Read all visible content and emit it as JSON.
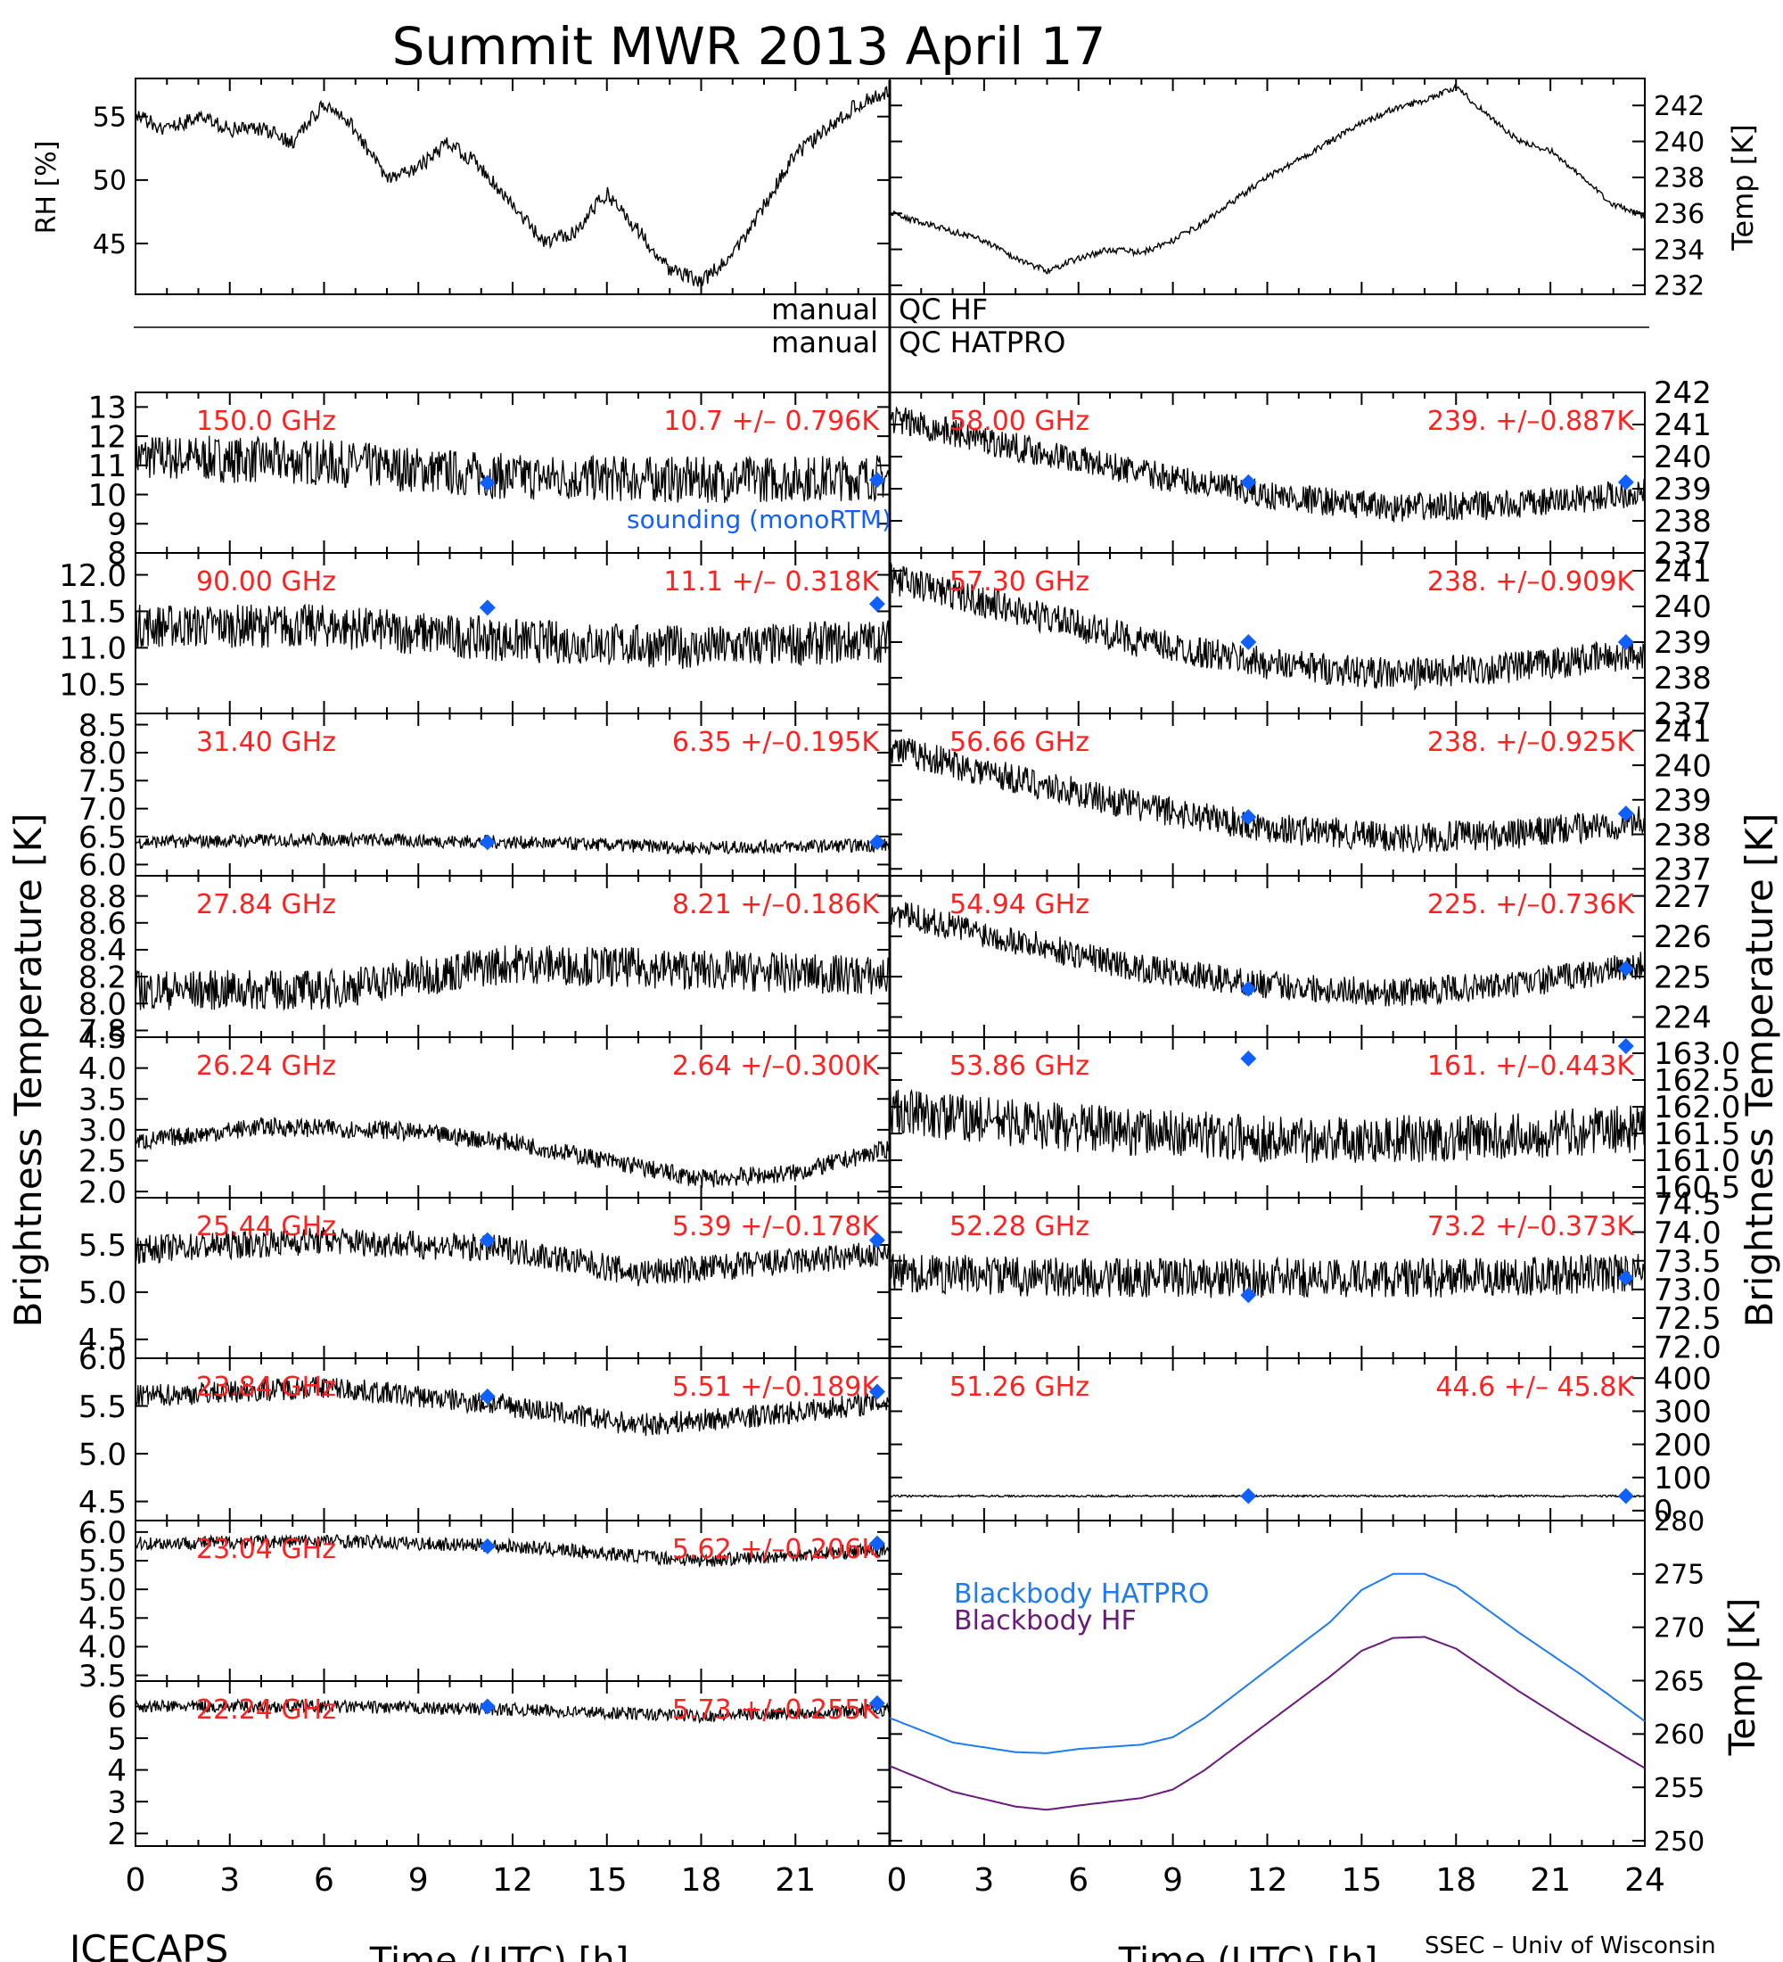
{
  "page": {
    "title": "Summit MWR 2013 April 17",
    "footer_left": "ICECAPS",
    "footer_right": "SSEC – Univ of Wisconsin",
    "qc_row1_left": "manual",
    "qc_row1_right": "QC HF",
    "qc_row2_left": "manual",
    "qc_row2_right": "QC HATPRO",
    "left_axis_title": "Brightness Temperature [K]",
    "right_axis_title": "Brightness Temperature [K]",
    "xlabel_left": "Time (UTC) [h]",
    "xlabel_right": "Time (UTC) [h]",
    "sounding_label": "sounding (monoRTM)",
    "colors": {
      "label_red": "#ff2020",
      "sounding_blue": "#1060ff",
      "bb_hatpro": "#1e7cf0",
      "bb_hf": "#6a1a7a",
      "ink": "#000000"
    }
  },
  "chart_data": [
    {
      "id": "rh",
      "type": "line",
      "ylabel": "RH [%]",
      "xlim": [
        0,
        24
      ],
      "ylim": [
        41,
        58
      ],
      "yticks": [
        45,
        50,
        55
      ],
      "xticks": [
        0,
        3,
        6,
        9,
        12,
        15,
        18,
        21
      ],
      "x": [
        0,
        1,
        2,
        3,
        4,
        5,
        6,
        7,
        8,
        9,
        10,
        11,
        12,
        13,
        14,
        15,
        16,
        17,
        18,
        19,
        20,
        21,
        22,
        23,
        24
      ],
      "y": [
        55,
        54,
        55,
        54,
        54,
        53,
        56,
        54,
        50,
        51,
        53,
        51,
        48,
        45,
        46,
        49,
        46,
        43,
        42,
        44,
        48,
        52,
        54,
        56,
        57
      ]
    },
    {
      "id": "temp",
      "type": "line",
      "ylabel": "Temp [K]",
      "xlim": [
        0,
        24
      ],
      "ylim": [
        231.5,
        243.5
      ],
      "yticks": [
        232,
        234,
        236,
        238,
        240,
        242
      ],
      "xticks": [
        0,
        3,
        6,
        9,
        12,
        15,
        18,
        21
      ],
      "x": [
        0,
        1,
        2,
        3,
        4,
        5,
        6,
        7,
        8,
        9,
        10,
        11,
        12,
        13,
        14,
        15,
        16,
        17,
        18,
        19,
        20,
        21,
        22,
        23,
        24
      ],
      "y": [
        236,
        235.5,
        235,
        234.5,
        233.5,
        232.8,
        233.5,
        234,
        233.8,
        234.5,
        235.5,
        236.8,
        238,
        239,
        240,
        241,
        241.8,
        242.3,
        243,
        241.5,
        240,
        239.5,
        238,
        236.5,
        235.8
      ]
    },
    {
      "id": "l150",
      "type": "scatter",
      "freq": "150.0 GHz",
      "stat": "10.7 +/– 0.796K",
      "ylim": [
        8,
        13.5
      ],
      "yticks": [
        8,
        9,
        10,
        11,
        12,
        13
      ],
      "xlim": [
        0,
        24
      ],
      "trend_x": [
        0,
        6,
        12,
        18,
        24
      ],
      "trend_y": [
        11.3,
        11.1,
        10.6,
        10.5,
        10.6
      ],
      "noise": 0.8,
      "sounding_x": [
        11.2,
        23.6
      ],
      "sounding_y": [
        10.4,
        10.5
      ]
    },
    {
      "id": "l90",
      "type": "scatter",
      "freq": "90.00 GHz",
      "stat": "11.1 +/– 0.318K",
      "ylim": [
        10.1,
        12.3
      ],
      "yticks": [
        10.5,
        11.0,
        11.5,
        12.0
      ],
      "xlim": [
        0,
        24
      ],
      "trend_x": [
        0,
        6,
        12,
        18,
        24
      ],
      "trend_y": [
        11.3,
        11.3,
        11.1,
        11.0,
        11.1
      ],
      "noise": 0.3,
      "sounding_x": [
        11.2,
        23.6
      ],
      "sounding_y": [
        11.55,
        11.6
      ]
    },
    {
      "id": "l31",
      "type": "scatter",
      "freq": "31.40 GHz",
      "stat": "6.35 +/–0.195K",
      "ylim": [
        5.8,
        8.7
      ],
      "yticks": [
        6.0,
        6.5,
        7.0,
        7.5,
        8.0,
        8.5
      ],
      "xlim": [
        0,
        24
      ],
      "trend_x": [
        0,
        6,
        12,
        18,
        24
      ],
      "trend_y": [
        6.4,
        6.45,
        6.4,
        6.3,
        6.35
      ],
      "noise": 0.12,
      "sounding_x": [
        11.2,
        23.6
      ],
      "sounding_y": [
        6.4,
        6.4
      ]
    },
    {
      "id": "l27",
      "type": "scatter",
      "freq": "27.84 GHz",
      "stat": "8.21 +/–0.186K",
      "ylim": [
        7.75,
        8.95
      ],
      "yticks": [
        7.8,
        8.0,
        8.2,
        8.4,
        8.6,
        8.8
      ],
      "xlim": [
        0,
        24
      ],
      "trend_x": [
        0,
        6,
        12,
        18,
        24
      ],
      "trend_y": [
        8.1,
        8.1,
        8.3,
        8.25,
        8.2
      ],
      "noise": 0.15,
      "sounding_x": [],
      "sounding_y": []
    },
    {
      "id": "l26",
      "type": "scatter",
      "freq": "26.24 GHz",
      "stat": "2.64 +/–0.300K",
      "ylim": [
        1.9,
        4.5
      ],
      "yticks": [
        2.0,
        2.5,
        3.0,
        3.5,
        4.0,
        4.5
      ],
      "xlim": [
        0,
        24
      ],
      "trend_x": [
        0,
        4,
        8,
        12,
        16,
        18,
        21,
        24
      ],
      "trend_y": [
        2.8,
        3.05,
        3.0,
        2.8,
        2.4,
        2.2,
        2.3,
        2.7
      ],
      "noise": 0.15,
      "sounding_x": [],
      "sounding_y": []
    },
    {
      "id": "l25",
      "type": "scatter",
      "freq": "25.44 GHz",
      "stat": "5.39 +/–0.178K",
      "ylim": [
        4.3,
        6.0
      ],
      "yticks": [
        4.5,
        5.0,
        5.5
      ],
      "xlim": [
        0,
        24
      ],
      "trend_x": [
        0,
        6,
        12,
        16,
        20,
        24
      ],
      "trend_y": [
        5.45,
        5.55,
        5.45,
        5.2,
        5.3,
        5.4
      ],
      "noise": 0.15,
      "sounding_x": [
        11.2,
        23.6
      ],
      "sounding_y": [
        5.55,
        5.55
      ]
    },
    {
      "id": "l23",
      "type": "scatter",
      "freq": "23.84 GHz",
      "stat": "5.51 +/–0.189K",
      "ylim": [
        4.3,
        6.0
      ],
      "yticks": [
        4.5,
        5.0,
        5.5,
        6.0
      ],
      "xlim": [
        0,
        24
      ],
      "trend_x": [
        0,
        6,
        12,
        16,
        20,
        24
      ],
      "trend_y": [
        5.6,
        5.7,
        5.5,
        5.3,
        5.4,
        5.55
      ],
      "noise": 0.12,
      "sounding_x": [
        11.2,
        23.6
      ],
      "sounding_y": [
        5.6,
        5.65
      ]
    },
    {
      "id": "l2304",
      "type": "scatter",
      "freq": "23.04 GHz",
      "stat": "5.62 +/–0.206K",
      "ylim": [
        3.4,
        6.2
      ],
      "yticks": [
        3.5,
        4.0,
        4.5,
        5.0,
        5.5,
        6.0
      ],
      "xlim": [
        0,
        24
      ],
      "trend_x": [
        0,
        6,
        12,
        18,
        24
      ],
      "trend_y": [
        5.8,
        5.85,
        5.75,
        5.5,
        5.7
      ],
      "noise": 0.12,
      "sounding_x": [
        11.2,
        23.6
      ],
      "sounding_y": [
        5.75,
        5.8
      ]
    },
    {
      "id": "l22",
      "type": "scatter",
      "freq": "22.24 GHz",
      "stat": "5.73 +/–0.255K",
      "ylim": [
        1.6,
        6.8
      ],
      "yticks": [
        2,
        3,
        4,
        5,
        6
      ],
      "xlim": [
        0,
        24
      ],
      "trend_x": [
        0,
        6,
        12,
        18,
        24
      ],
      "trend_y": [
        6.0,
        6.0,
        5.9,
        5.7,
        5.9
      ],
      "noise": 0.2,
      "sounding_x": [
        11.2,
        23.6
      ],
      "sounding_y": [
        6.0,
        6.1
      ]
    },
    {
      "id": "r58",
      "type": "scatter",
      "freq": "58.00 GHz",
      "stat": "239. +/–0.887K",
      "ylim": [
        237,
        242
      ],
      "yticks": [
        237,
        238,
        239,
        240,
        241,
        242
      ],
      "xlim": [
        0,
        24
      ],
      "trend_x": [
        0,
        4,
        8,
        12,
        16,
        20,
        24
      ],
      "trend_y": [
        241.2,
        240.3,
        239.5,
        238.8,
        238.4,
        238.5,
        238.9
      ],
      "noise": 0.45,
      "sounding_x": [
        11.4,
        23.4
      ],
      "sounding_y": [
        239.2,
        239.2
      ]
    },
    {
      "id": "r5730",
      "type": "scatter",
      "freq": "57.30 GHz",
      "stat": "238. +/–0.909K",
      "ylim": [
        237,
        241.5
      ],
      "yticks": [
        237,
        238,
        239,
        240,
        241
      ],
      "xlim": [
        0,
        24
      ],
      "trend_x": [
        0,
        4,
        8,
        12,
        16,
        20,
        24
      ],
      "trend_y": [
        240.8,
        239.9,
        239.0,
        238.4,
        238.1,
        238.3,
        238.7
      ],
      "noise": 0.45,
      "sounding_x": [
        11.4,
        23.4
      ],
      "sounding_y": [
        239.0,
        239.0
      ]
    },
    {
      "id": "r5666",
      "type": "scatter",
      "freq": "56.66 GHz",
      "stat": "238. +/–0.925K",
      "ylim": [
        236.8,
        241.5
      ],
      "yticks": [
        237,
        238,
        239,
        240,
        241
      ],
      "xlim": [
        0,
        24
      ],
      "trend_x": [
        0,
        4,
        8,
        12,
        16,
        20,
        24
      ],
      "trend_y": [
        240.5,
        239.6,
        238.8,
        238.2,
        237.9,
        238.0,
        238.4
      ],
      "noise": 0.45,
      "sounding_x": [
        11.4,
        23.4
      ],
      "sounding_y": [
        238.5,
        238.6
      ]
    },
    {
      "id": "r5494",
      "type": "scatter",
      "freq": "54.94 GHz",
      "stat": "225. +/–0.736K",
      "ylim": [
        223.5,
        227.5
      ],
      "yticks": [
        224,
        225,
        226,
        227
      ],
      "xlim": [
        0,
        24
      ],
      "trend_x": [
        0,
        4,
        8,
        12,
        16,
        20,
        24
      ],
      "trend_y": [
        226.6,
        225.9,
        225.2,
        224.8,
        224.6,
        224.8,
        225.3
      ],
      "noise": 0.35,
      "sounding_x": [
        11.4,
        23.4
      ],
      "sounding_y": [
        224.7,
        225.2
      ]
    },
    {
      "id": "r5386",
      "type": "scatter",
      "freq": "53.86 GHz",
      "stat": "161. +/–0.443K",
      "ylim": [
        160.3,
        163.3
      ],
      "yticks": [
        160.5,
        161.0,
        161.5,
        162.0,
        162.5,
        163.0
      ],
      "xlim": [
        0,
        24
      ],
      "trend_x": [
        0,
        6,
        12,
        18,
        24
      ],
      "trend_y": [
        161.9,
        161.6,
        161.4,
        161.4,
        161.6
      ],
      "noise": 0.45,
      "sounding_x": [
        11.4,
        23.4
      ],
      "sounding_y": [
        162.9,
        163.2
      ]
    },
    {
      "id": "r5228",
      "type": "scatter",
      "freq": "52.28 GHz",
      "stat": "73.2 +/–0.373K",
      "ylim": [
        71.8,
        74.6
      ],
      "yticks": [
        72.0,
        72.5,
        73.0,
        73.5,
        74.0,
        74.5
      ],
      "xlim": [
        0,
        24
      ],
      "trend_x": [
        0,
        6,
        12,
        18,
        24
      ],
      "trend_y": [
        73.3,
        73.2,
        73.2,
        73.2,
        73.3
      ],
      "noise": 0.35,
      "sounding_x": [
        11.4,
        23.4
      ],
      "sounding_y": [
        72.9,
        73.2
      ]
    },
    {
      "id": "r5126",
      "type": "scatter",
      "freq": "51.26 GHz",
      "stat": "44.6 +/– 45.8K",
      "ylim": [
        -30,
        460
      ],
      "yticks": [
        0,
        100,
        200,
        300,
        400
      ],
      "xlim": [
        0,
        24
      ],
      "trend_x": [
        0,
        24
      ],
      "trend_y": [
        44,
        44
      ],
      "noise": 3,
      "sounding_x": [
        11.4,
        23.4
      ],
      "sounding_y": [
        44,
        44
      ]
    },
    {
      "id": "bb",
      "type": "line",
      "ylabel": "Temp [K]",
      "xlim": [
        0,
        24
      ],
      "ylim": [
        249.5,
        280
      ],
      "yticks": [
        250,
        255,
        260,
        265,
        270,
        275,
        280
      ],
      "xticks": [
        0,
        3,
        6,
        9,
        12,
        15,
        18,
        21,
        24
      ],
      "x": [
        0,
        2,
        4,
        5,
        6,
        8,
        9,
        10,
        12,
        14,
        15,
        16,
        17,
        18,
        20,
        22,
        24
      ],
      "series": [
        {
          "name": "Blackbody HATPRO",
          "values": [
            261.5,
            259.2,
            258.3,
            258.2,
            258.6,
            259.0,
            259.7,
            261.5,
            266.0,
            270.5,
            273.5,
            275.0,
            275.0,
            273.8,
            269.5,
            265.5,
            261.2
          ]
        },
        {
          "name": "Blackbody HF",
          "values": [
            257.0,
            254.6,
            253.2,
            252.9,
            253.3,
            254.0,
            254.8,
            256.6,
            261.0,
            265.4,
            267.8,
            269.0,
            269.1,
            268.0,
            264.0,
            260.3,
            256.8
          ]
        }
      ]
    }
  ]
}
